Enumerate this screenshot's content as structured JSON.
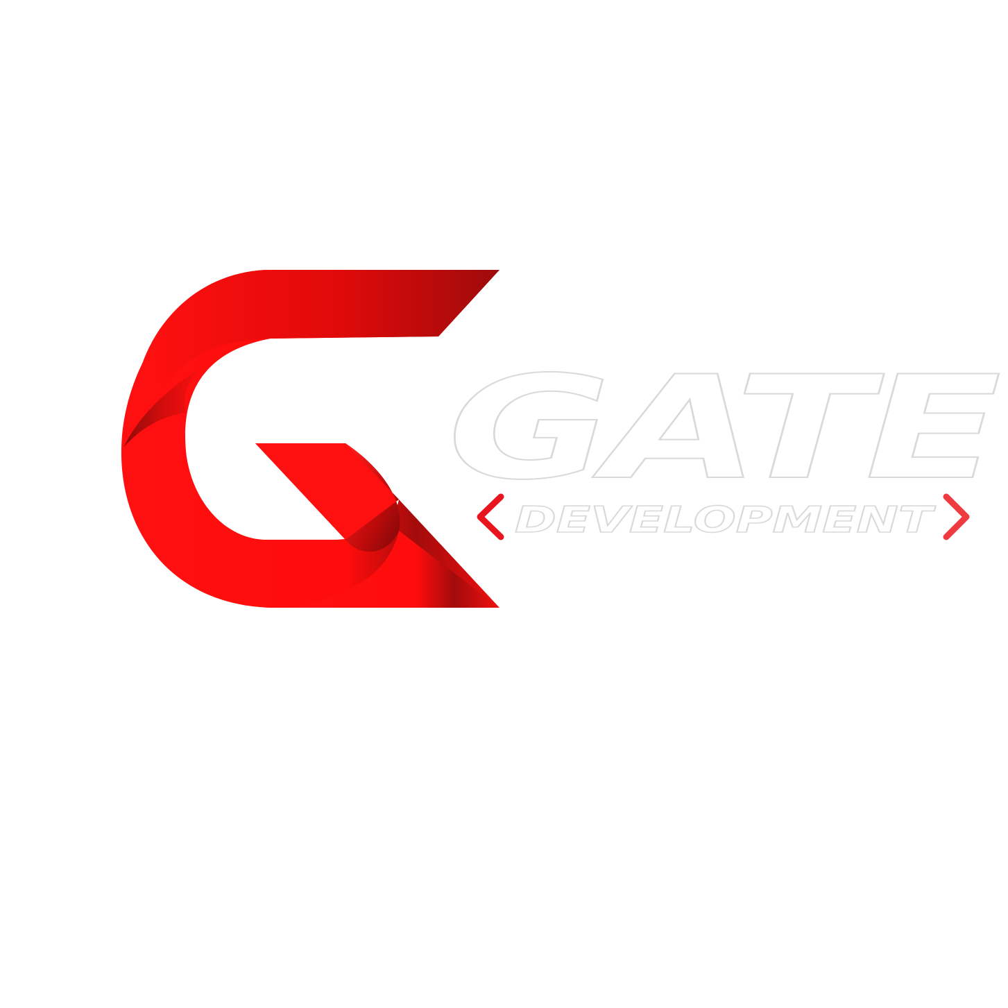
{
  "logo": {
    "wordmark": "GATE",
    "tagline": "DEVELOPMENT",
    "colors": {
      "red_light": "#ff1010",
      "red_mid": "#e10a0a",
      "red_dark": "#9e0b0b",
      "chevron_left": "#e8141e",
      "chevron_right": "#ef3a3f",
      "text_fill": "#ffffff",
      "text_outline": "#d9d9d9"
    },
    "icons": [
      "g-mark-icon",
      "chevron-left-icon",
      "chevron-right-icon"
    ]
  }
}
